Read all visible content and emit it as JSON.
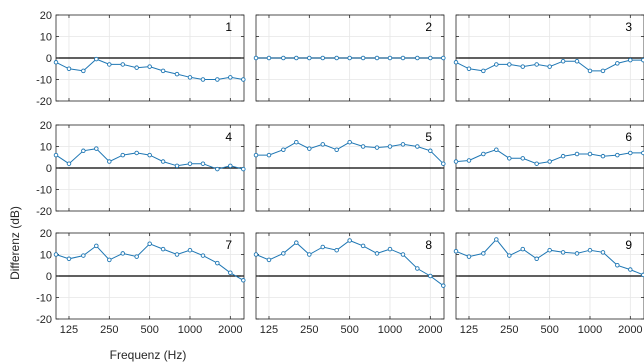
{
  "chart_data": {
    "type": "line",
    "layout": "3x3 small multiples, shared axes, rightmost column clipped at right edge",
    "xlabel": "Frequenz (Hz)",
    "ylabel": "Differenz (dB)",
    "x_scale": "log",
    "x_ticks": [
      125,
      250,
      500,
      1000,
      2000
    ],
    "x_tick_labels": [
      "125",
      "250",
      "500",
      "1000",
      "2000"
    ],
    "ylim": [
      -20,
      20
    ],
    "y_ticks": [
      -20,
      -10,
      0,
      10,
      20
    ],
    "y_tick_labels": [
      "-20",
      "-10",
      "0",
      "10",
      "20"
    ],
    "grid": true,
    "zero_line": true,
    "line_color": "#1f77b4",
    "x": [
      100,
      125,
      160,
      200,
      250,
      315,
      400,
      500,
      630,
      800,
      1000,
      1250,
      1600,
      2000,
      2500
    ],
    "panels": [
      {
        "label": "1",
        "values": [
          -2,
          -5,
          -6,
          -0.5,
          -3,
          -3,
          -4.5,
          -4,
          -6,
          -7.5,
          -9,
          -10,
          -10,
          -9,
          -10
        ]
      },
      {
        "label": "2",
        "values": [
          0,
          0,
          0,
          0,
          0,
          0,
          0,
          0,
          0,
          0,
          0,
          0,
          0,
          0,
          0
        ]
      },
      {
        "label": "3",
        "values": [
          -2,
          -5,
          -6,
          -3,
          -3,
          -4,
          -3,
          -4,
          -1.5,
          -1.5,
          -6,
          -6,
          -2.5,
          -1,
          -1
        ]
      },
      {
        "label": "4",
        "values": [
          6,
          2,
          8,
          9,
          3,
          6,
          7,
          6,
          3,
          1,
          2,
          2,
          -0.5,
          1,
          -0.5
        ]
      },
      {
        "label": "5",
        "values": [
          6,
          6,
          8.5,
          12,
          9,
          11,
          8.5,
          12,
          10,
          9.5,
          10,
          11,
          10,
          8,
          2
        ]
      },
      {
        "label": "6",
        "values": [
          3,
          3.5,
          6.5,
          8.5,
          4.5,
          4.5,
          2,
          3,
          5.5,
          6.5,
          6.5,
          5.5,
          6,
          7,
          7
        ]
      },
      {
        "label": "7",
        "values": [
          10,
          8,
          9.5,
          14,
          7.5,
          10.5,
          9,
          15,
          12.5,
          10,
          12,
          9.5,
          6,
          1.5,
          -2
        ]
      },
      {
        "label": "8",
        "values": [
          10,
          7.5,
          10.5,
          15.5,
          10,
          13.5,
          12,
          16.5,
          14,
          10.5,
          12.5,
          10,
          3.5,
          0,
          -4.5
        ]
      },
      {
        "label": "9",
        "values": [
          11.5,
          9,
          10.5,
          17,
          9.5,
          12.5,
          8,
          12,
          11,
          10.5,
          12,
          11,
          5,
          3,
          0.5
        ]
      }
    ]
  }
}
